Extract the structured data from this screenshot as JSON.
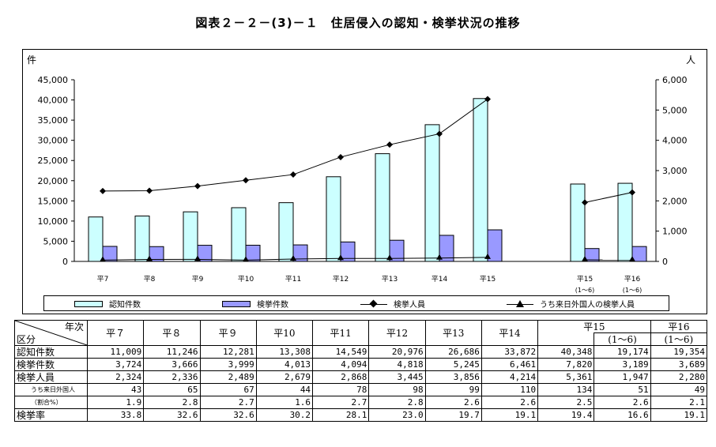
{
  "title": "図表２－２－(3)－１　住居侵入の認知・検挙状況の推移",
  "chart_data": {
    "type": "bar",
    "categories": [
      "平7",
      "平8",
      "平9",
      "平10",
      "平11",
      "平12",
      "平13",
      "平14",
      "平15",
      "平15",
      "平16"
    ],
    "category_sublabels": [
      "",
      "",
      "",
      "",
      "",
      "",
      "",
      "",
      "",
      "(1～6)",
      "(1～6)"
    ],
    "series": [
      {
        "name": "認知件数",
        "type": "bar",
        "axis": "left",
        "color": "#ccffff",
        "values": [
          11009,
          11246,
          12281,
          13308,
          14549,
          20976,
          26686,
          33872,
          40348,
          19174,
          19354
        ]
      },
      {
        "name": "検挙件数",
        "type": "bar",
        "axis": "left",
        "color": "#9999ff",
        "values": [
          3724,
          3666,
          3999,
          4013,
          4094,
          4818,
          5245,
          6461,
          7820,
          3189,
          3689
        ]
      },
      {
        "name": "検挙人員",
        "type": "line",
        "axis": "right",
        "marker": "diamond",
        "values": [
          2324,
          2336,
          2489,
          2679,
          2868,
          3445,
          3856,
          4214,
          5361,
          1947,
          2280
        ]
      },
      {
        "name": "うち来日外国人の検挙人員",
        "type": "line",
        "axis": "right",
        "marker": "triangle",
        "values": [
          43,
          65,
          67,
          44,
          78,
          98,
          99,
          110,
          134,
          51,
          49
        ]
      }
    ],
    "ylabel_left": "件",
    "ylabel_right": "人",
    "ylim_left": [
      0,
      45000
    ],
    "ylim_right": [
      0,
      6000
    ],
    "yticks_left": [
      "0",
      "5,000",
      "10,000",
      "15,000",
      "20,000",
      "25,000",
      "30,000",
      "35,000",
      "40,000",
      "45,000"
    ],
    "yticks_right": [
      "0",
      "1,000",
      "2,000",
      "3,000",
      "4,000",
      "5,000",
      "6,000"
    ],
    "grid": false,
    "legend_position": "bottom"
  },
  "table": {
    "header_top": "年次",
    "header_bottom": "区分",
    "columns": [
      "平７",
      "平８",
      "平９",
      "平10",
      "平11",
      "平12",
      "平13",
      "平14",
      "平15",
      "",
      "平16"
    ],
    "col_sub": [
      "",
      "",
      "",
      "",
      "",
      "",
      "",
      "",
      "",
      "(1～6)",
      "(1～6)"
    ],
    "rows": [
      {
        "label": "認知件数",
        "values": [
          "11,009",
          "11,246",
          "12,281",
          "13,308",
          "14,549",
          "20,976",
          "26,686",
          "33,872",
          "40,348",
          "19,174",
          "19,354"
        ]
      },
      {
        "label": "検挙件数",
        "values": [
          "3,724",
          "3,666",
          "3,999",
          "4,013",
          "4,094",
          "4,818",
          "5,245",
          "6,461",
          "7,820",
          "3,189",
          "3,689"
        ]
      },
      {
        "label": "検挙人員",
        "values": [
          "2,324",
          "2,336",
          "2,489",
          "2,679",
          "2,868",
          "3,445",
          "3,856",
          "4,214",
          "5,361",
          "1,947",
          "2,280"
        ]
      },
      {
        "label": "うち来日外国人",
        "small": true,
        "values": [
          "43",
          "65",
          "67",
          "44",
          "78",
          "98",
          "99",
          "110",
          "134",
          "51",
          "49"
        ]
      },
      {
        "label": "（割合%）",
        "small": true,
        "values": [
          "1.9",
          "2.8",
          "2.7",
          "1.6",
          "2.7",
          "2.8",
          "2.6",
          "2.6",
          "2.5",
          "2.6",
          "2.1"
        ]
      },
      {
        "label": "検挙率",
        "values": [
          "33.8",
          "32.6",
          "32.6",
          "30.2",
          "28.1",
          "23.0",
          "19.7",
          "19.1",
          "19.4",
          "16.6",
          "19.1"
        ]
      }
    ]
  }
}
